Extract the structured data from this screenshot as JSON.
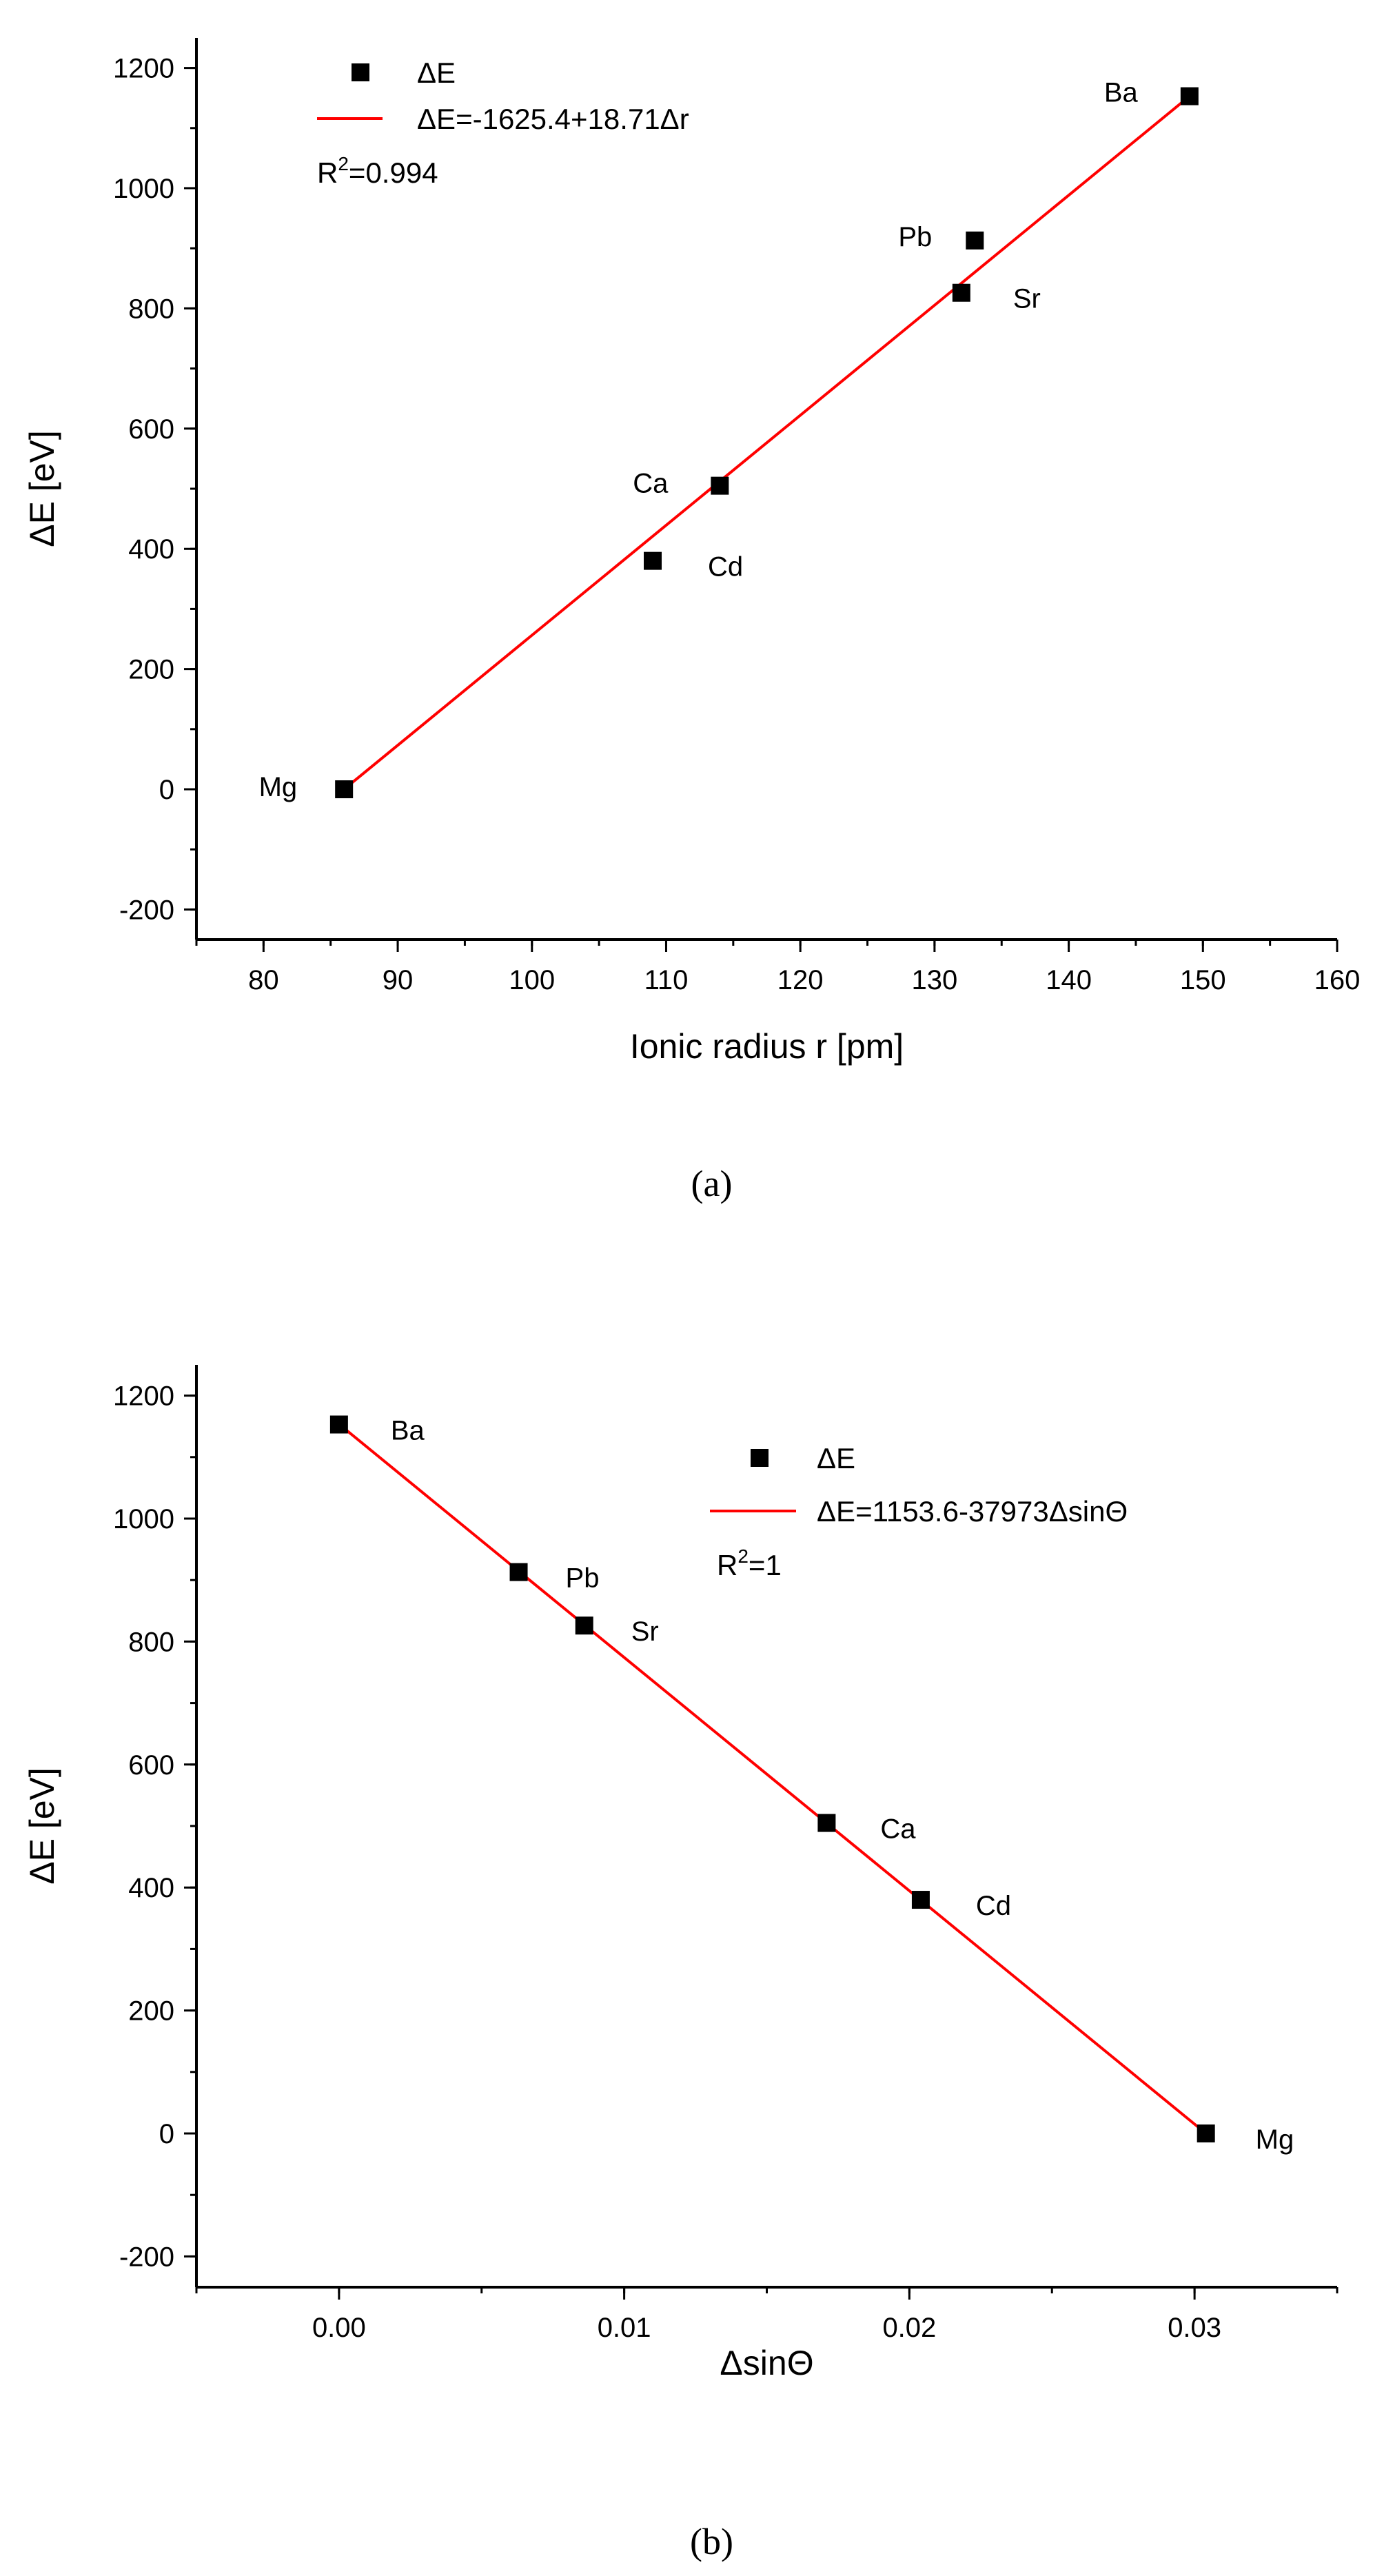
{
  "chart_data": [
    {
      "type": "scatter",
      "caption": "(a)",
      "xlabel": "Ionic radius r [pm]",
      "ylabel": "ΔE [eV]",
      "xlim": [
        75,
        160
      ],
      "ylim": [
        -250,
        1250
      ],
      "xticks": [
        "80",
        "90",
        "100",
        "110",
        "120",
        "130",
        "140",
        "150",
        "160"
      ],
      "yticks": [
        "-200",
        "0",
        "200",
        "400",
        "600",
        "800",
        "1000",
        "1200"
      ],
      "points": [
        {
          "label": "Mg",
          "x": 86,
          "y": 0
        },
        {
          "label": "Cd",
          "x": 109,
          "y": 380
        },
        {
          "label": "Ca",
          "x": 114,
          "y": 505
        },
        {
          "label": "Sr",
          "x": 132,
          "y": 826
        },
        {
          "label": "Pb",
          "x": 133,
          "y": 913
        },
        {
          "label": "Ba",
          "x": 149,
          "y": 1153
        }
      ],
      "fit": {
        "x": [
          86,
          149
        ],
        "y": [
          0,
          1153
        ],
        "color": "#ff0000"
      },
      "legend": {
        "position": "top-left",
        "series_label": "ΔE",
        "fit_label": "ΔE=-1625.4+18.71Δr",
        "r2_prefix": "R",
        "r2_sup": "2",
        "r2_value": "=0.994"
      },
      "marker_color": "#000000"
    },
    {
      "type": "scatter",
      "caption": "(b)",
      "xlabel": "ΔsinΘ",
      "ylabel": "ΔE [eV]",
      "xlim": [
        -0.005,
        0.035
      ],
      "ylim": [
        -250,
        1250
      ],
      "xticks": [
        "0.00",
        "0.01",
        "0.02",
        "0.03"
      ],
      "yticks": [
        "-200",
        "0",
        "200",
        "400",
        "600",
        "800",
        "1000",
        "1200"
      ],
      "points": [
        {
          "label": "Ba",
          "x": 0.0,
          "y": 1153
        },
        {
          "label": "Pb",
          "x": 0.0063,
          "y": 913
        },
        {
          "label": "Sr",
          "x": 0.0086,
          "y": 826
        },
        {
          "label": "Ca",
          "x": 0.0171,
          "y": 505
        },
        {
          "label": "Cd",
          "x": 0.0204,
          "y": 380
        },
        {
          "label": "Mg",
          "x": 0.0304,
          "y": 0
        }
      ],
      "fit": {
        "x": [
          0.0,
          0.0304
        ],
        "y": [
          1153.6,
          0
        ],
        "color": "#ff0000"
      },
      "legend": {
        "position": "top-right",
        "series_label": "ΔE",
        "fit_label": "ΔE=1153.6-37973ΔsinΘ",
        "r2_prefix": "R",
        "r2_sup": "2",
        "r2_value": "=1"
      },
      "marker_color": "#000000"
    }
  ]
}
